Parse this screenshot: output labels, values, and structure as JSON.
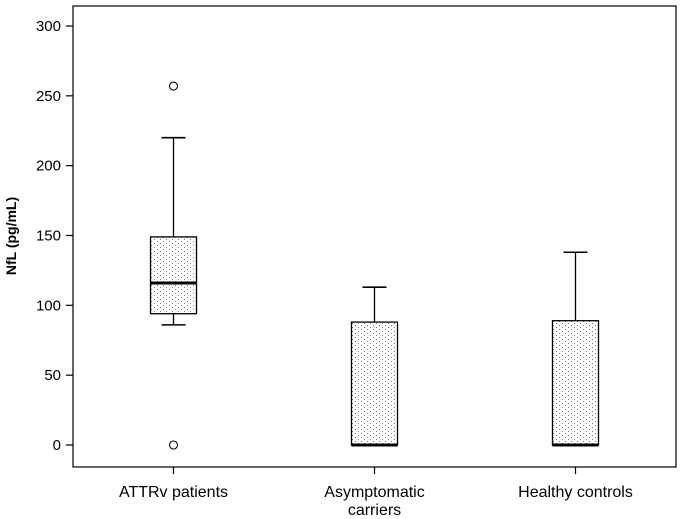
{
  "chart_data": {
    "type": "box",
    "ylabel": "NfL (pg/mL)",
    "ylim": [
      0,
      300
    ],
    "yticks": [
      "0",
      "50",
      "100",
      "150",
      "200",
      "250",
      "300"
    ],
    "grid": false,
    "categories": [
      {
        "label_lines": [
          "ATTRv patients"
        ],
        "whisker_low": 86,
        "q1": 94,
        "median": 116,
        "q3": 149,
        "whisker_high": 220,
        "outliers": [
          257,
          0
        ]
      },
      {
        "label_lines": [
          "Asymptomatic",
          "carriers"
        ],
        "whisker_low": 0,
        "q1": 0,
        "median": 0,
        "q3": 88,
        "whisker_high": 113,
        "outliers": []
      },
      {
        "label_lines": [
          "Healthy controls"
        ],
        "whisker_low": 0,
        "q1": 0,
        "median": 0,
        "q3": 89,
        "whisker_high": 138,
        "outliers": []
      }
    ],
    "box_fill": "dotted",
    "colors": {
      "axis": "#000000",
      "box_stroke": "#000000",
      "dot": "#7a7a7a"
    }
  }
}
